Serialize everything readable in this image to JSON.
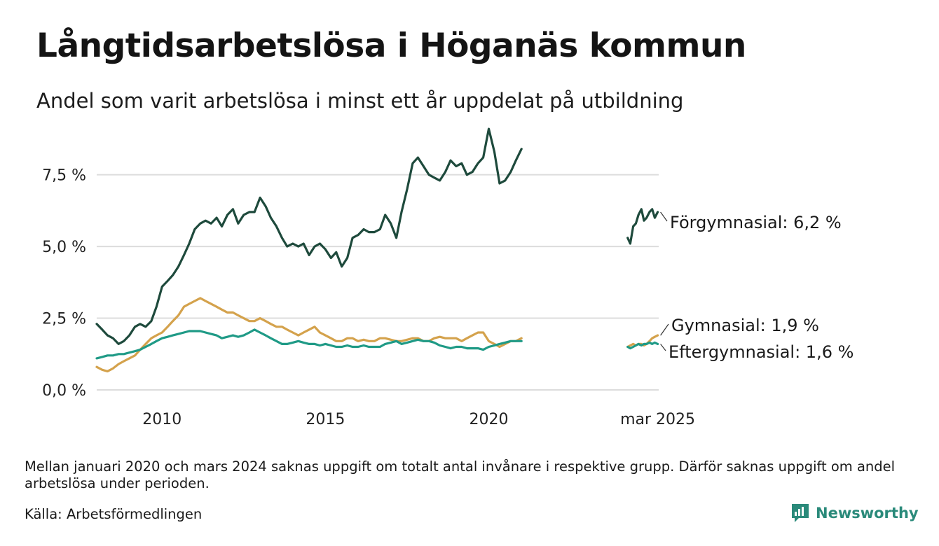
{
  "title": "Långtidsarbetslösa i Höganäs kommun",
  "subtitle": "Andel som varit arbetslösa i minst ett år uppdelat på utbildning",
  "footnote": "Mellan januari 2020 och mars 2024 saknas uppgift om totalt antal invånare i respektive grupp. Därför saknas uppgift om andel arbetslösa under perioden.",
  "source": "Källa: Arbetsförmedlingen",
  "brand": "Newsworthy",
  "colors": {
    "forgymnasial": "#1e4a3c",
    "gymnasial": "#d4a24c",
    "eftergymnasial": "#1f9a86",
    "grid": "#dcdcdc",
    "brand": "#2a8a7a"
  },
  "chart_data": {
    "type": "line",
    "ylim": [
      0,
      9.2
    ],
    "y_ticks": [
      {
        "value": 0,
        "label": "0,0 %"
      },
      {
        "value": 2.5,
        "label": "2,5 %"
      },
      {
        "value": 5,
        "label": "5,0 %"
      },
      {
        "value": 7.5,
        "label": "7,5 %"
      }
    ],
    "x_ticks": [
      {
        "value": 2010,
        "label": "2010"
      },
      {
        "value": 2015,
        "label": "2015"
      },
      {
        "value": 2020,
        "label": "2020"
      },
      {
        "value": 2025.17,
        "label": "mar 2025"
      }
    ],
    "xlim": [
      2008.0,
      2025.2
    ],
    "grid": true,
    "series": [
      {
        "name": "Förgymnasial",
        "end_label": "Förgymnasial: 6,2 %",
        "color_key": "forgymnasial",
        "segments": [
          {
            "x": [
              2008.0,
              2008.17,
              2008.33,
              2008.5,
              2008.67,
              2008.83,
              2009.0,
              2009.17,
              2009.33,
              2009.5,
              2009.67,
              2009.83,
              2010.0,
              2010.17,
              2010.33,
              2010.5,
              2010.67,
              2010.83,
              2011.0,
              2011.17,
              2011.33,
              2011.5,
              2011.67,
              2011.83,
              2012.0,
              2012.17,
              2012.33,
              2012.5,
              2012.67,
              2012.83,
              2013.0,
              2013.17,
              2013.33,
              2013.5,
              2013.67,
              2013.83,
              2014.0,
              2014.17,
              2014.33,
              2014.5,
              2014.67,
              2014.83,
              2015.0,
              2015.17,
              2015.33,
              2015.5,
              2015.67,
              2015.83,
              2016.0,
              2016.17,
              2016.33,
              2016.5,
              2016.67,
              2016.83,
              2017.0,
              2017.17,
              2017.33,
              2017.5,
              2017.67,
              2017.83,
              2018.0,
              2018.17,
              2018.33,
              2018.5,
              2018.67,
              2018.83,
              2019.0,
              2019.17,
              2019.33,
              2019.5,
              2019.67,
              2019.83,
              2020.0,
              2020.17,
              2020.33,
              2020.5,
              2020.67,
              2020.83,
              2021.0
            ],
            "y": [
              2.3,
              2.1,
              1.9,
              1.8,
              1.6,
              1.7,
              1.9,
              2.2,
              2.3,
              2.2,
              2.4,
              2.9,
              3.6,
              3.8,
              4.0,
              4.3,
              4.7,
              5.1,
              5.6,
              5.8,
              5.9,
              5.8,
              6.0,
              5.7,
              6.1,
              6.3,
              5.8,
              6.1,
              6.2,
              6.2,
              6.7,
              6.4,
              6.0,
              5.7,
              5.3,
              5.0,
              5.1,
              5.0,
              5.1,
              4.7,
              5.0,
              5.1,
              4.9,
              4.6,
              4.8,
              4.3,
              4.6,
              5.3,
              5.4,
              5.6,
              5.5,
              5.5,
              5.6,
              6.1,
              5.8,
              5.3,
              6.2,
              7.0,
              7.9,
              8.1,
              7.8,
              7.5,
              7.4,
              7.3,
              7.6,
              8.0,
              7.8,
              7.9,
              7.5,
              7.6,
              7.9,
              8.1,
              9.1,
              8.3,
              7.2,
              7.3,
              7.6,
              8.0,
              8.4
            ]
          },
          {
            "x": [
              2024.25,
              2024.33,
              2024.42,
              2024.5,
              2024.58,
              2024.67,
              2024.75,
              2024.83,
              2024.92,
              2025.0,
              2025.08,
              2025.17
            ],
            "y": [
              5.3,
              5.1,
              5.7,
              5.8,
              6.1,
              6.3,
              5.9,
              6.0,
              6.2,
              6.3,
              6.0,
              6.2
            ]
          }
        ]
      },
      {
        "name": "Gymnasial",
        "end_label": "Gymnasial: 1,9 %",
        "color_key": "gymnasial",
        "segments": [
          {
            "x": [
              2008.0,
              2008.17,
              2008.33,
              2008.5,
              2008.67,
              2008.83,
              2009.0,
              2009.17,
              2009.33,
              2009.5,
              2009.67,
              2009.83,
              2010.0,
              2010.17,
              2010.33,
              2010.5,
              2010.67,
              2010.83,
              2011.0,
              2011.17,
              2011.33,
              2011.5,
              2011.67,
              2011.83,
              2012.0,
              2012.17,
              2012.33,
              2012.5,
              2012.67,
              2012.83,
              2013.0,
              2013.17,
              2013.33,
              2013.5,
              2013.67,
              2013.83,
              2014.0,
              2014.17,
              2014.33,
              2014.5,
              2014.67,
              2014.83,
              2015.0,
              2015.17,
              2015.33,
              2015.5,
              2015.67,
              2015.83,
              2016.0,
              2016.17,
              2016.33,
              2016.5,
              2016.67,
              2016.83,
              2017.0,
              2017.17,
              2017.33,
              2017.5,
              2017.67,
              2017.83,
              2018.0,
              2018.17,
              2018.33,
              2018.5,
              2018.67,
              2018.83,
              2019.0,
              2019.17,
              2019.33,
              2019.5,
              2019.67,
              2019.83,
              2020.0,
              2020.17,
              2020.33,
              2020.5,
              2020.67,
              2020.83,
              2021.0
            ],
            "y": [
              0.8,
              0.7,
              0.65,
              0.75,
              0.9,
              1.0,
              1.1,
              1.2,
              1.4,
              1.6,
              1.8,
              1.9,
              2.0,
              2.2,
              2.4,
              2.6,
              2.9,
              3.0,
              3.1,
              3.2,
              3.1,
              3.0,
              2.9,
              2.8,
              2.7,
              2.7,
              2.6,
              2.5,
              2.4,
              2.4,
              2.5,
              2.4,
              2.3,
              2.2,
              2.2,
              2.1,
              2.0,
              1.9,
              2.0,
              2.1,
              2.2,
              2.0,
              1.9,
              1.8,
              1.7,
              1.7,
              1.8,
              1.8,
              1.7,
              1.75,
              1.7,
              1.7,
              1.8,
              1.8,
              1.75,
              1.7,
              1.7,
              1.75,
              1.8,
              1.8,
              1.7,
              1.7,
              1.8,
              1.85,
              1.8,
              1.8,
              1.8,
              1.7,
              1.8,
              1.9,
              2.0,
              2.0,
              1.7,
              1.6,
              1.5,
              1.6,
              1.7,
              1.7,
              1.8
            ]
          },
          {
            "x": [
              2024.25,
              2024.33,
              2024.42,
              2024.5,
              2024.58,
              2024.67,
              2024.75,
              2024.83,
              2024.92,
              2025.0,
              2025.08,
              2025.17
            ],
            "y": [
              1.5,
              1.55,
              1.6,
              1.55,
              1.6,
              1.6,
              1.55,
              1.6,
              1.7,
              1.8,
              1.85,
              1.9
            ]
          }
        ]
      },
      {
        "name": "Eftergymnasial",
        "end_label": "Eftergymnasial: 1,6 %",
        "color_key": "eftergymnasial",
        "segments": [
          {
            "x": [
              2008.0,
              2008.17,
              2008.33,
              2008.5,
              2008.67,
              2008.83,
              2009.0,
              2009.17,
              2009.33,
              2009.5,
              2009.67,
              2009.83,
              2010.0,
              2010.17,
              2010.33,
              2010.5,
              2010.67,
              2010.83,
              2011.0,
              2011.17,
              2011.33,
              2011.5,
              2011.67,
              2011.83,
              2012.0,
              2012.17,
              2012.33,
              2012.5,
              2012.67,
              2012.83,
              2013.0,
              2013.17,
              2013.33,
              2013.5,
              2013.67,
              2013.83,
              2014.0,
              2014.17,
              2014.33,
              2014.5,
              2014.67,
              2014.83,
              2015.0,
              2015.17,
              2015.33,
              2015.5,
              2015.67,
              2015.83,
              2016.0,
              2016.17,
              2016.33,
              2016.5,
              2016.67,
              2016.83,
              2017.0,
              2017.17,
              2017.33,
              2017.5,
              2017.67,
              2017.83,
              2018.0,
              2018.17,
              2018.33,
              2018.5,
              2018.67,
              2018.83,
              2019.0,
              2019.17,
              2019.33,
              2019.5,
              2019.67,
              2019.83,
              2020.0,
              2020.17,
              2020.33,
              2020.5,
              2020.67,
              2020.83,
              2021.0
            ],
            "y": [
              1.1,
              1.15,
              1.2,
              1.2,
              1.25,
              1.25,
              1.3,
              1.35,
              1.4,
              1.5,
              1.6,
              1.7,
              1.8,
              1.85,
              1.9,
              1.95,
              2.0,
              2.05,
              2.05,
              2.05,
              2.0,
              1.95,
              1.9,
              1.8,
              1.85,
              1.9,
              1.85,
              1.9,
              2.0,
              2.1,
              2.0,
              1.9,
              1.8,
              1.7,
              1.6,
              1.6,
              1.65,
              1.7,
              1.65,
              1.6,
              1.6,
              1.55,
              1.6,
              1.55,
              1.5,
              1.5,
              1.55,
              1.5,
              1.5,
              1.55,
              1.5,
              1.5,
              1.5,
              1.6,
              1.65,
              1.7,
              1.6,
              1.65,
              1.7,
              1.75,
              1.7,
              1.7,
              1.65,
              1.55,
              1.5,
              1.45,
              1.5,
              1.5,
              1.45,
              1.45,
              1.45,
              1.4,
              1.5,
              1.55,
              1.6,
              1.65,
              1.7,
              1.7,
              1.7
            ]
          },
          {
            "x": [
              2024.25,
              2024.33,
              2024.42,
              2024.5,
              2024.58,
              2024.67,
              2024.75,
              2024.83,
              2024.92,
              2025.0,
              2025.08,
              2025.17
            ],
            "y": [
              1.5,
              1.45,
              1.5,
              1.55,
              1.6,
              1.55,
              1.6,
              1.6,
              1.65,
              1.6,
              1.65,
              1.6
            ]
          }
        ]
      }
    ]
  }
}
